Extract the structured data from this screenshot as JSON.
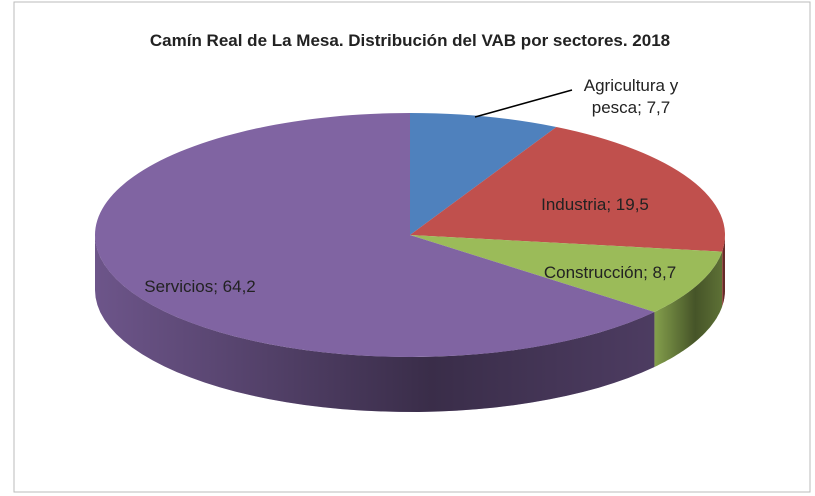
{
  "chart_data": {
    "type": "pie3d",
    "title": "Camín Real de La Mesa. Distribución del VAB por sectores. 2018",
    "categories": [
      "Agricultura y pesca",
      "Industria",
      "Construcción",
      "Servicios"
    ],
    "values": [
      7.7,
      19.5,
      8.7,
      64.2
    ],
    "value_labels": [
      "7,7",
      "19,5",
      "8,7",
      "64,2"
    ],
    "label_separator": "; ",
    "colors": [
      "#4f81bd",
      "#c0504d",
      "#9bbb59",
      "#8064a2"
    ]
  }
}
